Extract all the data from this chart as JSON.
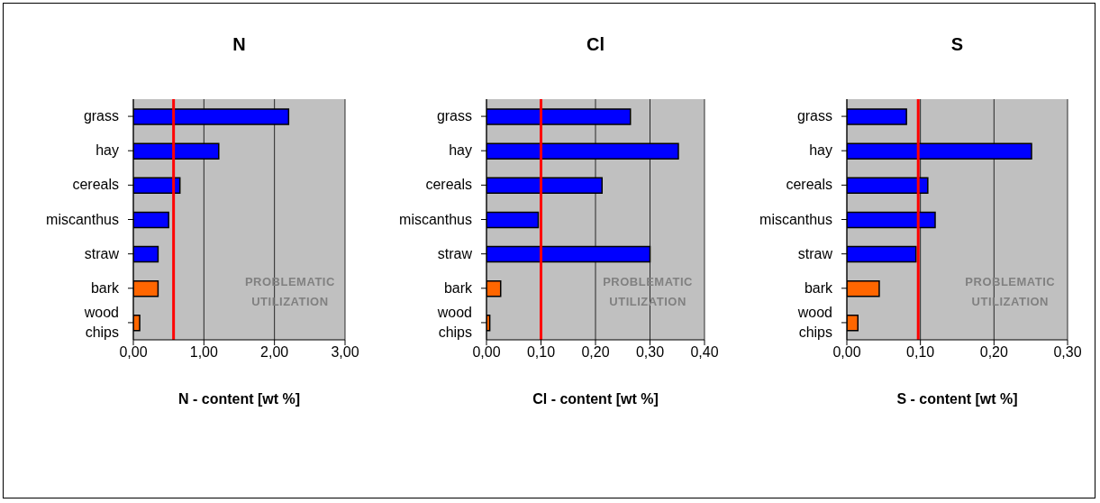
{
  "chart_data": [
    {
      "type": "bar",
      "orientation": "horizontal",
      "title": "N",
      "xlabel": "N - content [wt %]",
      "categories": [
        "grass",
        "hay",
        "cereals",
        "miscanthus",
        "straw",
        "bark",
        "wood chips"
      ],
      "values": [
        2.2,
        1.21,
        0.66,
        0.5,
        0.35,
        0.35,
        0.09
      ],
      "colors": [
        "#0000ff",
        "#0000ff",
        "#0000ff",
        "#0000ff",
        "#0000ff",
        "#ff6600",
        "#ff6600"
      ],
      "xlim": [
        0,
        3
      ],
      "xticks": [
        {
          "value": 0,
          "label": "0,00"
        },
        {
          "value": 1,
          "label": "1,00"
        },
        {
          "value": 2,
          "label": "2,00"
        },
        {
          "value": 3,
          "label": "3,00"
        }
      ],
      "grid": "x",
      "ref_lines": [
        {
          "axis": "x",
          "value": 0.57,
          "color": "#ff0000"
        }
      ],
      "annotations": [
        "PROBLEMATIC UTILIZATION"
      ]
    },
    {
      "type": "bar",
      "orientation": "horizontal",
      "title": "Cl",
      "xlabel": "Cl - content [wt %]",
      "categories": [
        "grass",
        "hay",
        "cereals",
        "miscanthus",
        "straw",
        "bark",
        "wood chips"
      ],
      "values": [
        0.264,
        0.352,
        0.212,
        0.095,
        0.3,
        0.026,
        0.006
      ],
      "colors": [
        "#0000ff",
        "#0000ff",
        "#0000ff",
        "#0000ff",
        "#0000ff",
        "#ff6600",
        "#ff6600"
      ],
      "xlim": [
        0,
        0.4
      ],
      "xticks": [
        {
          "value": 0,
          "label": "0,00"
        },
        {
          "value": 0.1,
          "label": "0,10"
        },
        {
          "value": 0.2,
          "label": "0,20"
        },
        {
          "value": 0.3,
          "label": "0,30"
        },
        {
          "value": 0.4,
          "label": "0,40"
        }
      ],
      "grid": "x",
      "ref_lines": [
        {
          "axis": "x",
          "value": 0.1,
          "color": "#ff0000"
        }
      ],
      "annotations": [
        "PROBLEMATIC UTILIZATION"
      ]
    },
    {
      "type": "bar",
      "orientation": "horizontal",
      "title": "S",
      "xlabel": "S - content [wt %]",
      "categories": [
        "grass",
        "hay",
        "cereals",
        "miscanthus",
        "straw",
        "bark",
        "wood chips"
      ],
      "values": [
        0.081,
        0.251,
        0.11,
        0.12,
        0.094,
        0.044,
        0.015
      ],
      "colors": [
        "#0000ff",
        "#0000ff",
        "#0000ff",
        "#0000ff",
        "#0000ff",
        "#ff6600",
        "#ff6600"
      ],
      "xlim": [
        0,
        0.3
      ],
      "xticks": [
        {
          "value": 0,
          "label": "0,00"
        },
        {
          "value": 0.1,
          "label": "0,10"
        },
        {
          "value": 0.2,
          "label": "0,20"
        },
        {
          "value": 0.3,
          "label": "0,30"
        }
      ],
      "grid": "x",
      "ref_lines": [
        {
          "axis": "x",
          "value": 0.097,
          "color": "#ff0000"
        }
      ],
      "annotations": [
        "PROBLEMATIC UTILIZATION"
      ]
    }
  ]
}
